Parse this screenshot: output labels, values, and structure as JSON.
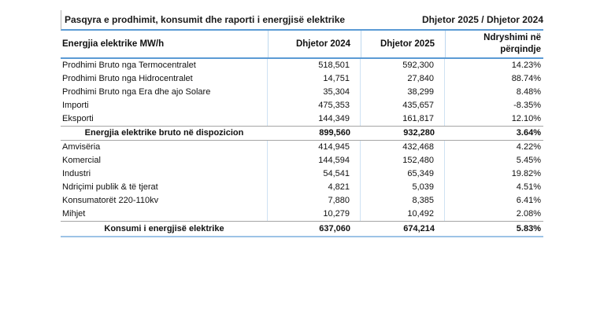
{
  "title": "Pasqyra e prodhimit, konsumit dhe raporti i energjisë elektrike",
  "period": "Dhjetor 2025 / Dhjetor 2024",
  "table": {
    "columns": [
      "Energjia elektrike MW/h",
      "Dhjetor 2024",
      "Dhjetor 2025",
      "Ndryshimi në përqindje"
    ],
    "rows": [
      {
        "type": "data",
        "label": "Prodhimi Bruto nga Termocentralet",
        "v2024": "518,501",
        "v2025": "592,300",
        "change": "14.23%"
      },
      {
        "type": "data",
        "label": "Prodhimi Bruto nga Hidrocentralet",
        "v2024": "14,751",
        "v2025": "27,840",
        "change": "88.74%"
      },
      {
        "type": "data",
        "label": "Prodhimi Bruto nga Era dhe ajo Solare",
        "v2024": "35,304",
        "v2025": "38,299",
        "change": "8.48%"
      },
      {
        "type": "data",
        "label": "Importi",
        "v2024": "475,353",
        "v2025": "435,657",
        "change": "-8.35%"
      },
      {
        "type": "data",
        "label": "Eksporti",
        "v2024": "144,349",
        "v2025": "161,817",
        "change": "12.10%"
      },
      {
        "type": "summary",
        "label": "Energjia elektrike bruto në dispozicion",
        "v2024": "899,560",
        "v2025": "932,280",
        "change": "3.64%"
      },
      {
        "type": "data",
        "label": "Amvisëria",
        "v2024": "414,945",
        "v2025": "432,468",
        "change": "4.22%"
      },
      {
        "type": "data",
        "label": "Komercial",
        "v2024": "144,594",
        "v2025": "152,480",
        "change": "5.45%"
      },
      {
        "type": "data",
        "label": "Industri",
        "v2024": "54,541",
        "v2025": "65,349",
        "change": "19.82%"
      },
      {
        "type": "data",
        "label": "Ndriçimi publik & të tjerat",
        "v2024": "4,821",
        "v2025": "5,039",
        "change": "4.51%"
      },
      {
        "type": "data",
        "label": "Konsumatorët  220-110kv",
        "v2024": "7,880",
        "v2025": "8,385",
        "change": "6.41%"
      },
      {
        "type": "data",
        "label": "Mihjet",
        "v2024": "10,279",
        "v2025": "10,492",
        "change": "2.08%"
      },
      {
        "type": "summary",
        "label": "Konsumi i energjisë elektrike",
        "v2024": "637,060",
        "v2025": "674,214",
        "change": "5.83%"
      }
    ]
  },
  "colors": {
    "accent_blue": "#5b9bd5",
    "light_blue_border": "#bdd7ee",
    "bottom_blue": "#9dc3e6",
    "summary_gray": "#a6a6a6"
  }
}
